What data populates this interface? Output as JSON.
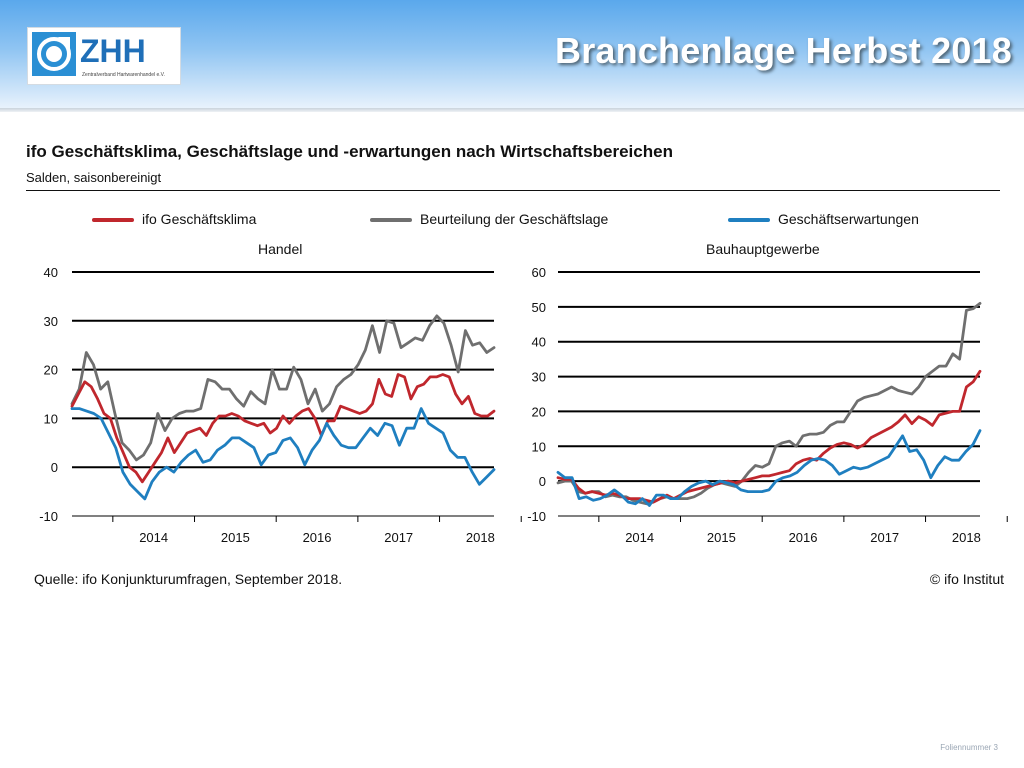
{
  "slide": {
    "title": "Branchenlage Herbst 2018",
    "footer": "Foliennummer 3"
  },
  "logo": {
    "text": "ZHH",
    "tagline": "Zentralverband Hartwarenhandel e.V."
  },
  "figure": {
    "title": "ifo Geschäftsklima, Geschäftslage und -erwartungen nach Wirtschaftsbereichen",
    "subtitle": "Salden, saisonbereinigt",
    "source": "Quelle: ifo Konjunkturumfragen, September 2018.",
    "copyright": "© ifo Institut",
    "legend": [
      {
        "label": "ifo Geschäftsklima",
        "color": "#c0272d"
      },
      {
        "label": "Beurteilung der Geschäftslage",
        "color": "#6f6f6f"
      },
      {
        "label": "Geschäftserwartungen",
        "color": "#1f7fc0"
      }
    ]
  },
  "chart_data": [
    {
      "type": "line",
      "title": "Handel",
      "x_ticks": [
        "2014",
        "2015",
        "2016",
        "2017",
        "2018"
      ],
      "ylim": [
        -10,
        40
      ],
      "y_ticks": [
        -10,
        0,
        10,
        20,
        30,
        40
      ],
      "grid": "horizontal",
      "legend_position": "top",
      "x_start": "2013-07",
      "x_end": "2018-09",
      "series": [
        {
          "name": "ifo Geschäftsklima",
          "color": "#c0272d",
          "values": [
            12.5,
            15,
            17.5,
            16.5,
            14,
            11,
            10,
            6,
            3,
            0,
            -1,
            -3,
            -1,
            1,
            3,
            6,
            3,
            5,
            7,
            7.5,
            8,
            6.5,
            9,
            10.5,
            10.5,
            11,
            10.5,
            9.5,
            9,
            8.5,
            9,
            7,
            8,
            10.5,
            9,
            10.5,
            11.5,
            12,
            10,
            6.5,
            9.5,
            9.5,
            12.5,
            12,
            11.5,
            11,
            11.5,
            13,
            18,
            15,
            14.5,
            19,
            18.5,
            14,
            16.5,
            17,
            18.5,
            18.5,
            19,
            18.5,
            15,
            13,
            14.5,
            11,
            10.5,
            10.5,
            11.5
          ]
        },
        {
          "name": "Beurteilung der Geschäftslage",
          "color": "#6f6f6f",
          "values": [
            13,
            16,
            23.5,
            21,
            16,
            17.5,
            11,
            5,
            3.5,
            1.5,
            2.5,
            5,
            11,
            7.5,
            10,
            11,
            11.5,
            11.5,
            12,
            18,
            17.5,
            16,
            16,
            14,
            12.5,
            15.5,
            14,
            13,
            20,
            16,
            16,
            20.5,
            18,
            13,
            16,
            11.5,
            13,
            16.5,
            18,
            19,
            21,
            24,
            29,
            23.5,
            30,
            29.5,
            24.5,
            25.5,
            26.5,
            26,
            29,
            31,
            29.5,
            25,
            19.5,
            28,
            25,
            25.5,
            23.5,
            24.5
          ]
        },
        {
          "name": "Geschäftserwartungen",
          "color": "#1f7fc0",
          "values": [
            12,
            12,
            11.5,
            11,
            10,
            7,
            4,
            -1,
            -3.5,
            -5,
            -6.5,
            -3,
            -1,
            0,
            -1,
            1,
            2.5,
            3.5,
            1,
            1.5,
            3.5,
            4.5,
            6,
            6,
            5,
            4,
            0.5,
            2.5,
            3,
            5.5,
            6,
            4,
            0.5,
            3.5,
            5.5,
            9,
            6.5,
            4.5,
            4,
            4,
            6,
            8,
            6.5,
            9,
            8.5,
            4.5,
            8,
            8,
            12,
            9,
            8,
            7,
            3.5,
            2,
            2,
            -1,
            -3.5,
            -2,
            -0.5
          ]
        }
      ]
    },
    {
      "type": "line",
      "title": "Bauhauptgewerbe",
      "x_ticks": [
        "2014",
        "2015",
        "2016",
        "2017",
        "2018"
      ],
      "ylim": [
        -10,
        60
      ],
      "y_ticks": [
        -10,
        0,
        10,
        20,
        30,
        40,
        50,
        60
      ],
      "grid": "horizontal",
      "legend_position": "top",
      "x_start": "2013-07",
      "x_end": "2018-09",
      "series": [
        {
          "name": "ifo Geschäftsklima",
          "color": "#c0272d",
          "values": [
            1,
            0.5,
            0.5,
            -2,
            -3.5,
            -3,
            -3.5,
            -4,
            -3.5,
            -4,
            -5,
            -5,
            -5,
            -5.5,
            -6,
            -5,
            -4,
            -5,
            -4,
            -3,
            -2.5,
            -2,
            -1.5,
            -1,
            -0.5,
            0,
            -0.5,
            0,
            0.5,
            1,
            1.5,
            1.5,
            2,
            2.5,
            3,
            5,
            6,
            6.5,
            6,
            8,
            9.5,
            10.5,
            11,
            10.5,
            9.5,
            10.5,
            12.5,
            13.5,
            14.5,
            15.5,
            17,
            19,
            16.5,
            18.5,
            17.5,
            16,
            19,
            19.5,
            20,
            20,
            27,
            28.5,
            31.5
          ]
        },
        {
          "name": "Beurteilung der Geschäftslage",
          "color": "#6f6f6f",
          "values": [
            -0.5,
            0,
            0,
            -3,
            -3.5,
            -3,
            -3,
            -4.5,
            -4,
            -4.5,
            -4.5,
            -5.5,
            -6,
            -6.5,
            -6,
            -5,
            -4.5,
            -5,
            -5,
            -5,
            -4.5,
            -3.5,
            -2,
            -1,
            -0.5,
            -1,
            -1.5,
            0,
            2.5,
            4.5,
            4,
            5,
            10,
            11,
            11.5,
            10,
            13,
            13.5,
            13.5,
            14,
            16,
            17,
            17,
            20,
            23,
            24,
            24.5,
            25,
            26,
            27,
            26,
            25.5,
            25,
            27,
            30,
            31.5,
            33,
            33,
            36.5,
            35,
            49,
            49.5,
            51
          ]
        },
        {
          "name": "Geschäftserwartungen",
          "color": "#1f7fc0",
          "values": [
            2.5,
            1,
            1,
            -5,
            -4.5,
            -5.5,
            -5,
            -4,
            -2.5,
            -4,
            -6,
            -6.5,
            -5,
            -7,
            -4,
            -4,
            -5,
            -5,
            -3,
            -1.5,
            -0.5,
            0,
            -1,
            0,
            -0.5,
            -1,
            -2.5,
            -3,
            -3,
            -3,
            -2.5,
            0,
            1,
            1.5,
            2.5,
            4.5,
            6,
            6.5,
            6,
            4.5,
            2,
            3,
            4,
            3.5,
            4,
            5,
            6,
            7,
            10,
            13,
            8.5,
            9,
            6,
            1,
            4.5,
            7,
            6,
            6,
            8.5,
            10.5,
            14.5
          ]
        }
      ]
    }
  ]
}
